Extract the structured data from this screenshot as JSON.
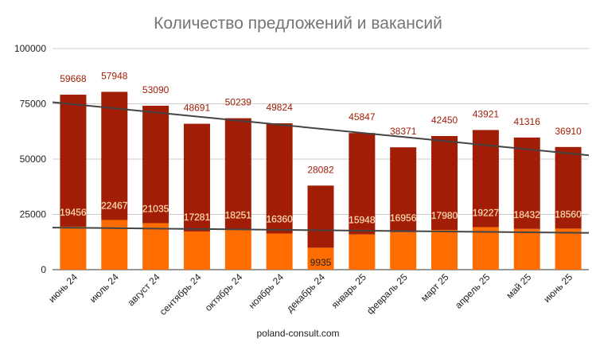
{
  "title": "Количество предложений и вакансий",
  "footer": "poland-consult.com",
  "colors": {
    "top_series": "#a11d05",
    "bottom_series": "#ff6d01",
    "top_label": "#a11d05",
    "bottom_label": "#ffffff",
    "trend": "#444444",
    "grid": "#cccccc",
    "axis_text": "#222222"
  },
  "chart_data": {
    "type": "bar",
    "stacked": true,
    "categories": [
      "июнь 24",
      "июль 24",
      "август 24",
      "сентябрь 24",
      "октябрь 24",
      "ноябрь 24",
      "декабрь 24",
      "январь 25",
      "февраль 25",
      "март 25",
      "апрель 25",
      "май 25",
      "июнь 25"
    ],
    "series": [
      {
        "values": [
          19456,
          22467,
          21035,
          17281,
          18251,
          16360,
          9935,
          15948,
          16956,
          17980,
          19227,
          18432,
          18560
        ]
      },
      {
        "values": [
          59668,
          57948,
          53090,
          48691,
          50239,
          49824,
          28082,
          45847,
          38371,
          42450,
          43921,
          41316,
          36910
        ]
      }
    ],
    "trendlines": [
      {
        "series_index": 1,
        "type": "linear"
      },
      {
        "series_index": 0,
        "type": "linear"
      }
    ],
    "y_ticks": [
      "0",
      "25000",
      "50000",
      "75000",
      "100000"
    ],
    "ylim": [
      0,
      100000
    ],
    "xlabel": "",
    "ylabel": "",
    "grid": true,
    "legend": "none"
  }
}
